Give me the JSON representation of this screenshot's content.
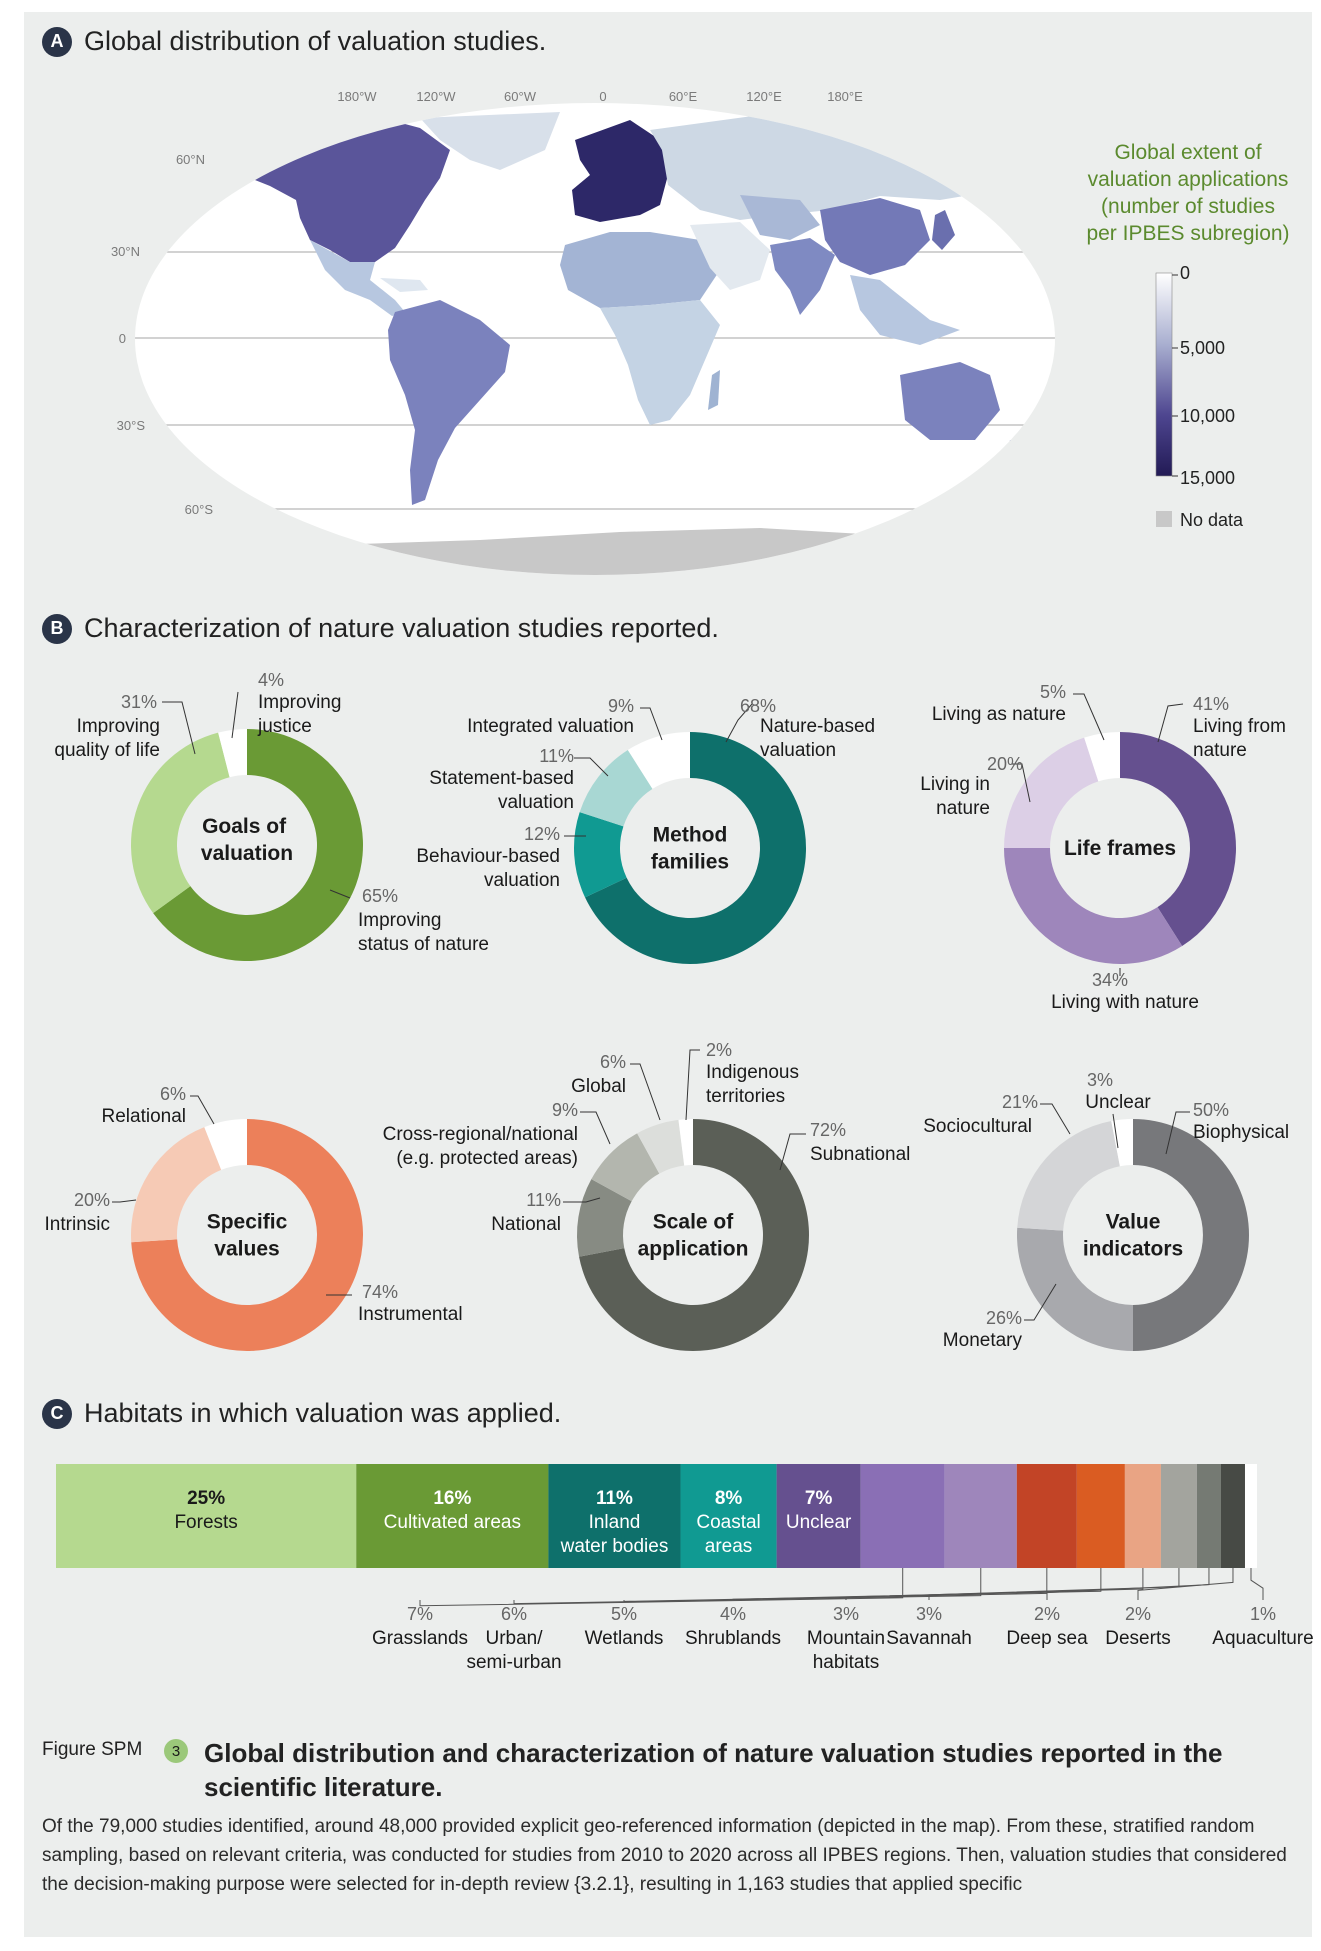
{
  "sectionA": {
    "letter": "A",
    "title": "Global distribution of valuation studies.",
    "lon_ticks": [
      "180°W",
      "120°W",
      "60°W",
      "0",
      "60°E",
      "120°E",
      "180°E"
    ],
    "lat_ticks": [
      "60°N",
      "30°N",
      "0",
      "30°S",
      "60°S"
    ],
    "legend_title": [
      "Global extent of",
      "valuation applications",
      "(number of studies",
      "per IPBES subregion)"
    ],
    "legend_ticks": [
      "0",
      "5,000",
      "10,000",
      "15,000"
    ],
    "legend_nodata": "No data",
    "colors": {
      "legend_title": "#5b8a2e",
      "scale_low": "#ffffff",
      "scale_high": "#221a55",
      "nodata": "#c8c8c8"
    }
  },
  "sectionB": {
    "letter": "B",
    "title": "Characterization of nature valuation studies reported."
  },
  "sectionC": {
    "letter": "C",
    "title": "Habitats in which valuation was applied."
  },
  "chart_data": [
    {
      "type": "pie",
      "variant": "donut",
      "title": "Goals of valuation",
      "slices": [
        {
          "label": "Improving status of nature",
          "pct": "65%",
          "value": 65,
          "color": "#6a9a35"
        },
        {
          "label": "Improving quality of life",
          "pct": "31%",
          "value": 31,
          "color": "#b5d98f"
        },
        {
          "label": "Improving justice",
          "pct": "4%",
          "value": 4,
          "color": "#ffffff"
        }
      ]
    },
    {
      "type": "pie",
      "variant": "donut",
      "title": "Method families",
      "slices": [
        {
          "label": "Nature-based valuation",
          "pct": "68%",
          "value": 68,
          "color": "#0e706b"
        },
        {
          "label": "Behaviour-based valuation",
          "pct": "12%",
          "value": 12,
          "color": "#109a92"
        },
        {
          "label": "Statement-based valuation",
          "pct": "11%",
          "value": 11,
          "color": "#a8d7d3"
        },
        {
          "label": "Integrated valuation",
          "pct": "9%",
          "value": 9,
          "color": "#ffffff"
        }
      ]
    },
    {
      "type": "pie",
      "variant": "donut",
      "title": "Life frames",
      "slices": [
        {
          "label": "Living from nature",
          "pct": "41%",
          "value": 41,
          "color": "#65508f"
        },
        {
          "label": "Living with nature",
          "pct": "34%",
          "value": 34,
          "color": "#9e86bb"
        },
        {
          "label": "Living in nature",
          "pct": "20%",
          "value": 20,
          "color": "#dccfe6"
        },
        {
          "label": "Living as nature",
          "pct": "5%",
          "value": 5,
          "color": "#ffffff"
        }
      ]
    },
    {
      "type": "pie",
      "variant": "donut",
      "title": "Specific values",
      "slices": [
        {
          "label": "Instrumental",
          "pct": "74%",
          "value": 74,
          "color": "#ec805a"
        },
        {
          "label": "Intrinsic",
          "pct": "20%",
          "value": 20,
          "color": "#f6cab5"
        },
        {
          "label": "Relational",
          "pct": "6%",
          "value": 6,
          "color": "#ffffff"
        }
      ]
    },
    {
      "type": "pie",
      "variant": "donut",
      "title": "Scale of application",
      "slices": [
        {
          "label": "Subnational",
          "pct": "72%",
          "value": 72,
          "color": "#5b5f57"
        },
        {
          "label": "National",
          "pct": "11%",
          "value": 11,
          "color": "#878b83"
        },
        {
          "label": "Cross-regional/national (e.g. protected areas)",
          "pct": "9%",
          "value": 9,
          "color": "#b3b6ae"
        },
        {
          "label": "Global",
          "pct": "6%",
          "value": 6,
          "color": "#dcdedb"
        },
        {
          "label": "Indigenous territories",
          "pct": "2%",
          "value": 2,
          "color": "#ffffff"
        }
      ]
    },
    {
      "type": "pie",
      "variant": "donut",
      "title": "Value indicators",
      "slices": [
        {
          "label": "Biophysical",
          "pct": "50%",
          "value": 50,
          "color": "#77787b"
        },
        {
          "label": "Monetary",
          "pct": "26%",
          "value": 26,
          "color": "#a8a9ad"
        },
        {
          "label": "Sociocultural",
          "pct": "21%",
          "value": 21,
          "color": "#d4d5d7"
        },
        {
          "label": "Unclear",
          "pct": "3%",
          "value": 3,
          "color": "#ffffff"
        }
      ]
    },
    {
      "type": "bar",
      "variant": "stacked-horizontal-100",
      "categories": [
        "Forests",
        "Cultivated areas",
        "Inland water bodies",
        "Coastal areas",
        "Unclear",
        "Grasslands",
        "Urban/ semi-urban",
        "Wetlands",
        "Shrublands",
        "Mountain habitats",
        "Savannah",
        "Deep sea",
        "Deserts",
        "Aquaculture"
      ],
      "values": [
        25,
        16,
        11,
        8,
        7,
        7,
        6,
        5,
        4,
        3,
        3,
        2,
        2,
        1
      ],
      "pct_labels": [
        "25%",
        "16%",
        "11%",
        "8%",
        "7%",
        "7%",
        "6%",
        "5%",
        "4%",
        "3%",
        "3%",
        "2%",
        "2%",
        "1%"
      ],
      "inside_labels": [
        [
          "Forests"
        ],
        [
          "Cultivated areas"
        ],
        [
          "Inland",
          "water bodies"
        ],
        [
          "Coastal",
          "areas"
        ],
        [
          "Unclear"
        ]
      ],
      "below_labels": [
        [
          "Grasslands"
        ],
        [
          "Urban/",
          "semi-urban"
        ],
        [
          "Wetlands"
        ],
        [
          "Shrublands"
        ],
        [
          "Mountain",
          "habitats"
        ],
        [
          "Savannah"
        ],
        [
          "Deep sea"
        ],
        [
          "Deserts"
        ],
        [
          "Aquaculture"
        ]
      ],
      "colors": [
        "#b5d98f",
        "#6a9a35",
        "#0e706b",
        "#109a92",
        "#65508f",
        "#8a6fb5",
        "#9e86bb",
        "#c24426",
        "#da5c22",
        "#e9a484",
        "#a3a49e",
        "#757a73",
        "#474a45",
        "#ffffff"
      ]
    }
  ],
  "caption": {
    "figure_label": "Figure SPM",
    "figure_number": "3",
    "title": "Global distribution and characterization of nature valuation studies reported in the scientific literature.",
    "body": "Of the 79,000 studies identified, around 48,000 provided explicit geo-referenced information (depicted in the map). From these, stratified random sampling, based on relevant criteria, was conducted for studies from 2010 to 2020 across all IPBES regions. Then, valuation studies that considered the decision-making purpose were selected for in-depth review {3.2.1}, resulting in 1,163 studies that applied specific"
  }
}
